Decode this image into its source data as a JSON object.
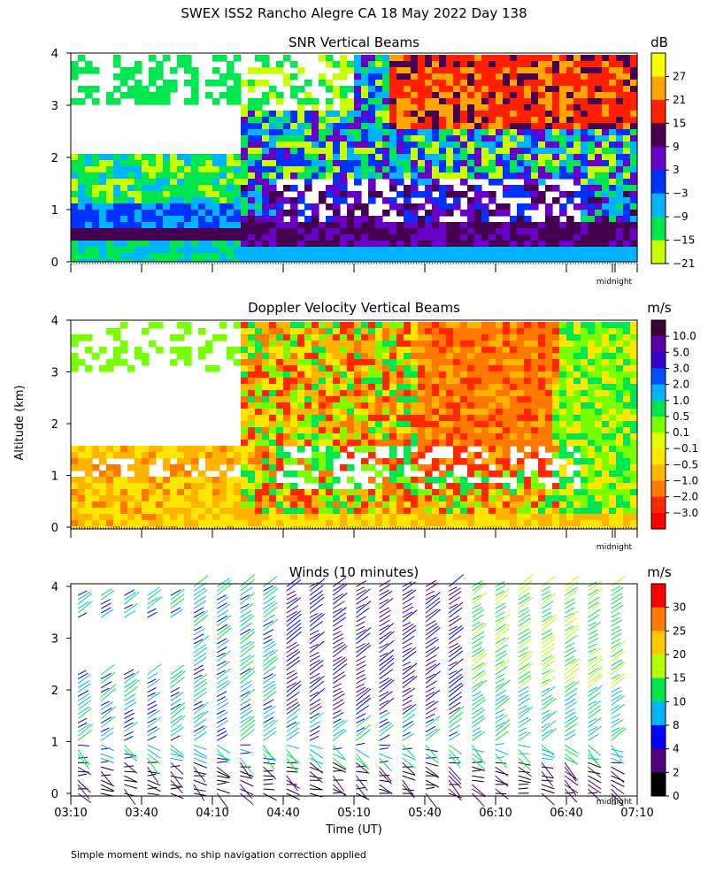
{
  "figure": {
    "title": "SWEX ISS2 Rancho Alegre CA  18 May 2022 Day 138",
    "footnote": "Simple moment winds, no ship navigation correction applied",
    "shared_ylabel": "Altitude (km)",
    "shared_xlabel": "Time (UT)",
    "midnight_label": "midnight"
  },
  "chart_data": [
    {
      "type": "heatmap",
      "title": "SNR Vertical Beams",
      "units": "dB",
      "ylim": [
        0,
        4
      ],
      "yticks": [
        "0",
        "1",
        "2",
        "3",
        "4"
      ],
      "colorbar_labels": [
        "27",
        "21",
        "15",
        "9",
        "3",
        "−3",
        "−9",
        "−15",
        "−21"
      ],
      "colorbar_colors": [
        "#ffff00",
        "#ffa500",
        "#ff2000",
        "#460050",
        "#6a00c8",
        "#0032ff",
        "#00b4ff",
        "#00e650",
        "#c8ff00"
      ]
    },
    {
      "type": "heatmap",
      "title": "Doppler Velocity Vertical Beams",
      "units": "m/s",
      "ylim": [
        0,
        4
      ],
      "yticks": [
        "0",
        "1",
        "2",
        "3",
        "4"
      ],
      "colorbar_labels": [
        "10.0",
        "5.0",
        "3.0",
        "2.0",
        "1.0",
        "0.5",
        "0.1",
        "−0.1",
        "−0.5",
        "−1.0",
        "−2.0",
        "−3.0"
      ],
      "colorbar_colors": [
        "#3c0032",
        "#5a00aa",
        "#3200c8",
        "#0050ff",
        "#00b4ff",
        "#00e650",
        "#78ff00",
        "#e6ff00",
        "#ffe600",
        "#ffb400",
        "#ff7800",
        "#ff2800",
        "#ff0000"
      ]
    },
    {
      "type": "scatter",
      "title": "Winds (10 minutes)",
      "units": "m/s",
      "ylim": [
        0,
        4
      ],
      "yticks": [
        "0",
        "1",
        "2",
        "3",
        "4"
      ],
      "xtick_labels": [
        "03:10",
        "03:40",
        "04:10",
        "04:40",
        "05:10",
        "05:40",
        "06:10",
        "06:40",
        "07:10"
      ],
      "colorbar_labels": [
        "30",
        "25",
        "20",
        "15",
        "10",
        "8",
        "4",
        "2",
        "0"
      ],
      "colorbar_colors": [
        "#ff0000",
        "#ff7800",
        "#ffc800",
        "#b4ff00",
        "#00e650",
        "#00b4ff",
        "#0000ff",
        "#50007a",
        "#000000"
      ]
    }
  ]
}
